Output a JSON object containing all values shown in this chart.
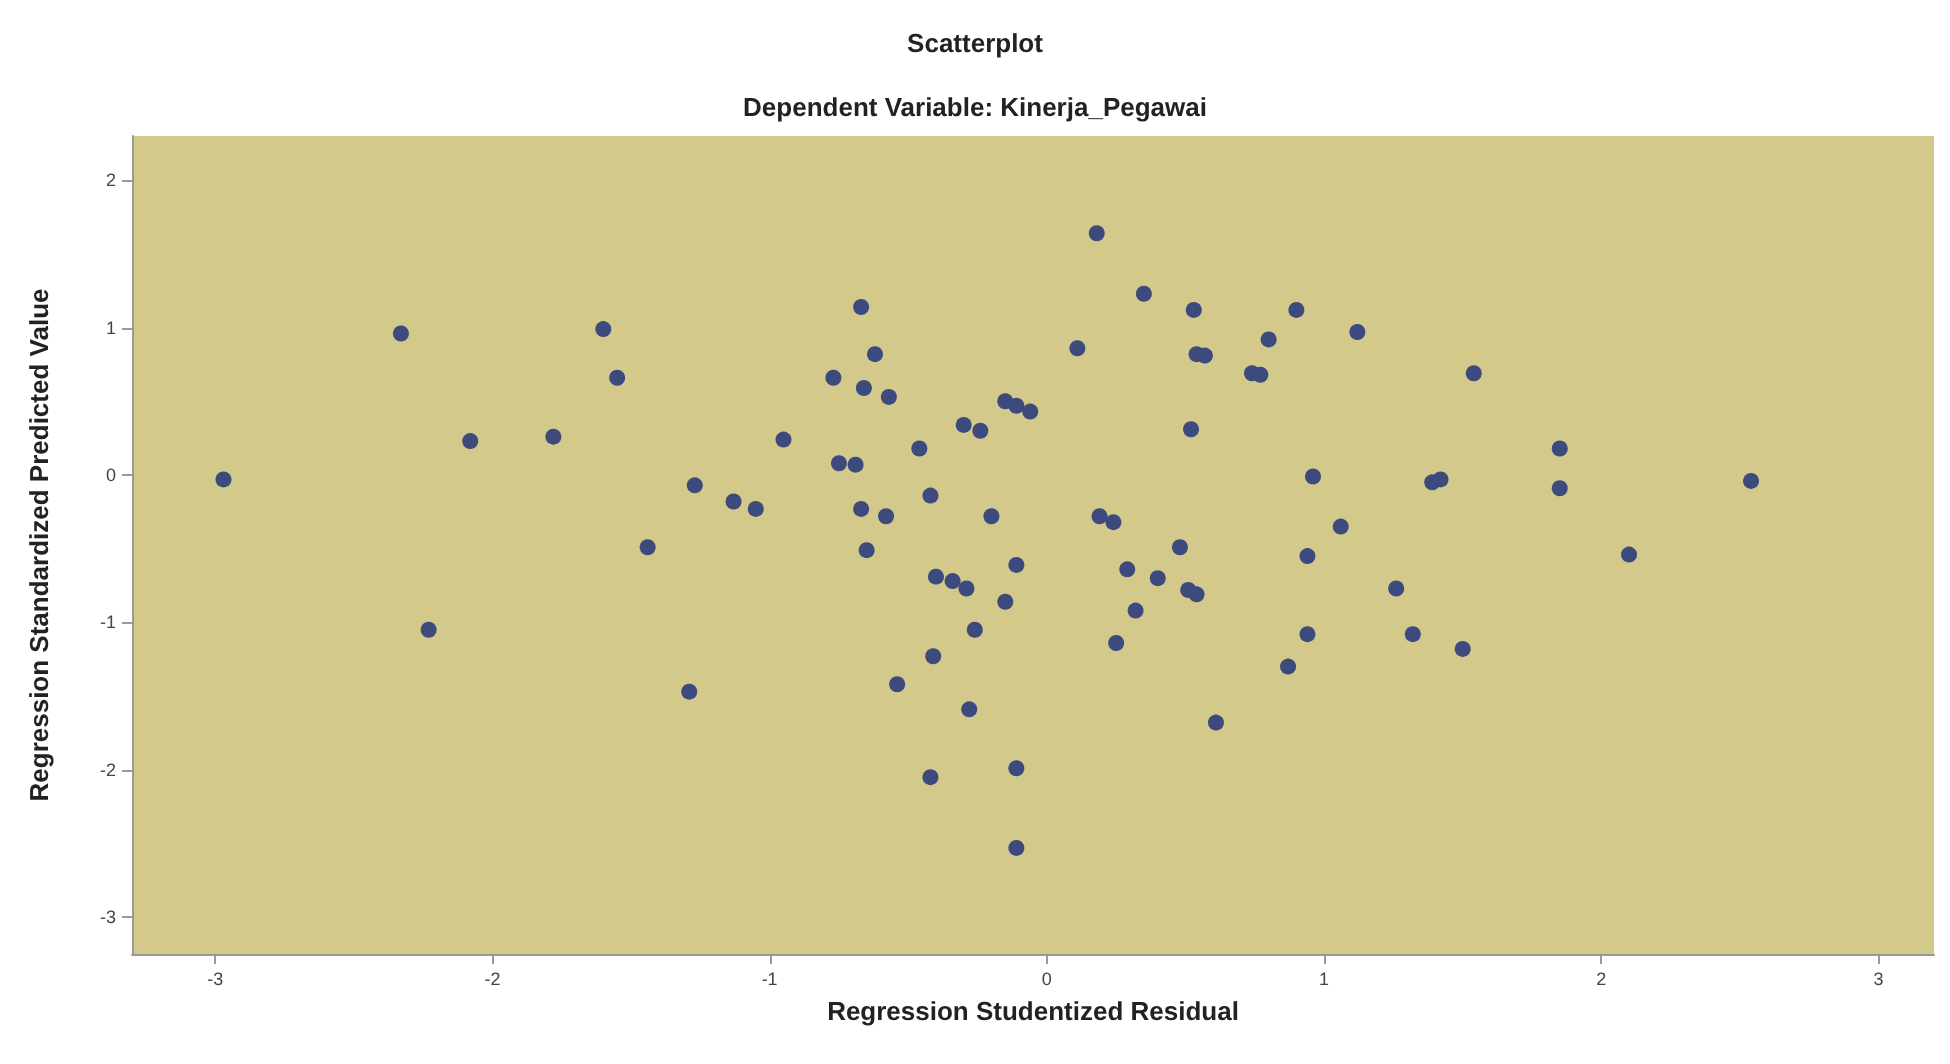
{
  "chart_data": {
    "type": "scatter",
    "title": "Scatterplot",
    "subtitle": "Dependent Variable: Kinerja_Pegawai",
    "xlabel": "Regression Studentized Residual",
    "ylabel": "Regression Standardized Predicted Value",
    "x": [
      -2.97,
      -2.33,
      -2.23,
      -2.08,
      -1.78,
      -1.6,
      -1.55,
      -1.44,
      0.18,
      0.35,
      0.53,
      0.8,
      -0.67,
      -0.62,
      0.11,
      0.54,
      0.57,
      0.74,
      0.77,
      -0.77,
      -0.66,
      -0.57,
      -0.15,
      -0.11,
      -0.06,
      -0.3,
      -0.24,
      0.52,
      -0.95,
      -0.46,
      -0.75,
      -0.69,
      -1.27,
      -0.42,
      -1.13,
      -1.05,
      -0.67,
      -0.58,
      -0.2,
      0.19,
      0.24,
      -0.65,
      0.48,
      -0.11,
      0.29,
      0.4,
      0.51,
      0.54,
      -0.4,
      -0.34,
      -0.29,
      -0.15,
      0.32,
      -0.26,
      0.25,
      -0.41,
      0.87,
      -1.29,
      -0.54,
      -0.28,
      0.61,
      -0.42,
      -0.11,
      -0.11,
      0.9,
      1.12,
      1.54,
      1.85,
      1.85,
      2.54,
      0.96,
      1.39,
      1.42,
      1.06,
      2.1,
      0.94,
      1.26,
      0.94,
      1.32,
      1.5
    ],
    "series": [
      {
        "color": "#3c4a7e",
        "values": [
          -0.03,
          0.96,
          -1.05,
          0.23,
          0.26,
          0.99,
          0.66,
          -0.49,
          1.64,
          1.23,
          1.12,
          0.92,
          1.14,
          0.82,
          0.86,
          0.82,
          0.81,
          0.69,
          0.68,
          0.66,
          0.59,
          0.53,
          0.5,
          0.47,
          0.43,
          0.34,
          0.3,
          0.31,
          0.24,
          0.18,
          0.08,
          0.07,
          -0.07,
          -0.14,
          -0.18,
          -0.23,
          -0.23,
          -0.28,
          -0.28,
          -0.28,
          -0.32,
          -0.51,
          -0.49,
          -0.61,
          -0.64,
          -0.7,
          -0.78,
          -0.81,
          -0.69,
          -0.72,
          -0.77,
          -0.86,
          -0.92,
          -1.05,
          -1.14,
          -1.23,
          -1.3,
          -1.47,
          -1.42,
          -1.59,
          -1.68,
          -2.05,
          -1.99,
          -2.53,
          1.12,
          0.97,
          0.69,
          0.18,
          -0.09,
          -0.04,
          -0.01,
          -0.05,
          -0.03,
          -0.35,
          -0.54,
          -0.55,
          -0.77,
          -1.08,
          -1.08,
          -1.18
        ]
      }
    ],
    "xlim": [
      -3.3,
      3.2
    ],
    "xticks": [
      -3,
      -2,
      -1,
      0,
      1,
      2,
      3
    ],
    "ylim": [
      -3.25,
      2.3
    ],
    "yticks": [
      -3,
      -2,
      -1,
      0,
      1,
      2
    ],
    "grid": false,
    "marker": "circle"
  }
}
